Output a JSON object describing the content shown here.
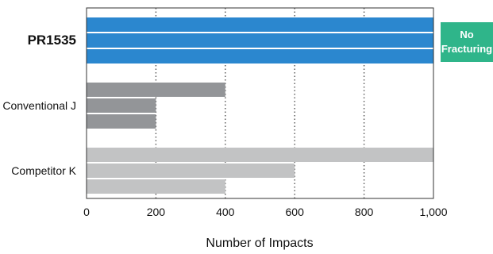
{
  "chart_data": {
    "type": "bar",
    "orientation": "horizontal",
    "xlabel": "Number of Impacts",
    "xlim": [
      0,
      1000
    ],
    "x_ticks": [
      0,
      200,
      400,
      600,
      800,
      1000
    ],
    "x_tick_labels": [
      "0",
      "200",
      "400",
      "600",
      "800",
      "1,000"
    ],
    "grid": "vertical-dotted",
    "categories": [
      {
        "name": "PR1535",
        "color": "#2b87cf",
        "values": [
          1000,
          1000,
          1000
        ],
        "annotation": {
          "text_line1": "No",
          "text_line2": "Fracturing",
          "color": "#2fb58a"
        }
      },
      {
        "name": "Conventional J",
        "color": "#939598",
        "values": [
          400,
          200,
          200
        ]
      },
      {
        "name": "Competitor K",
        "color": "#c2c3c4",
        "values": [
          1000,
          600,
          400
        ]
      }
    ]
  }
}
